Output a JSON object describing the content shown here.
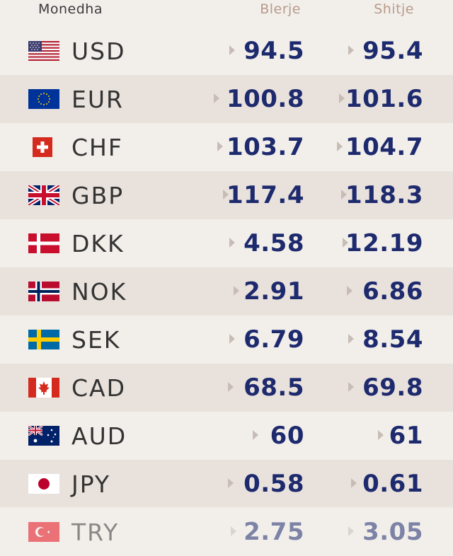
{
  "header": {
    "currency": "Monedha",
    "buy": "Blerje",
    "sell": "Shitje"
  },
  "rows": [
    {
      "code": "USD",
      "flag": "us-flag-icon",
      "buy": "94.5",
      "sell": "95.4"
    },
    {
      "code": "EUR",
      "flag": "eu-flag-icon",
      "buy": "100.8",
      "sell": "101.6"
    },
    {
      "code": "CHF",
      "flag": "ch-flag-icon",
      "buy": "103.7",
      "sell": "104.7"
    },
    {
      "code": "GBP",
      "flag": "gb-flag-icon",
      "buy": "117.4",
      "sell": "118.3"
    },
    {
      "code": "DKK",
      "flag": "dk-flag-icon",
      "buy": "4.58",
      "sell": "12.19"
    },
    {
      "code": "NOK",
      "flag": "no-flag-icon",
      "buy": "2.91",
      "sell": "6.86"
    },
    {
      "code": "SEK",
      "flag": "se-flag-icon",
      "buy": "6.79",
      "sell": "8.54"
    },
    {
      "code": "CAD",
      "flag": "ca-flag-icon",
      "buy": "68.5",
      "sell": "69.8"
    },
    {
      "code": "AUD",
      "flag": "au-flag-icon",
      "buy": "60",
      "sell": "61"
    },
    {
      "code": "JPY",
      "flag": "jp-flag-icon",
      "buy": "0.58",
      "sell": "0.61"
    },
    {
      "code": "TRY",
      "flag": "tr-flag-icon",
      "buy": "2.75",
      "sell": "3.05"
    }
  ],
  "colors": {
    "value": "#1e2a6e",
    "header_accent": "#b89a8a",
    "row_alt": "#e9e2dc",
    "background": "#f2efeb"
  }
}
